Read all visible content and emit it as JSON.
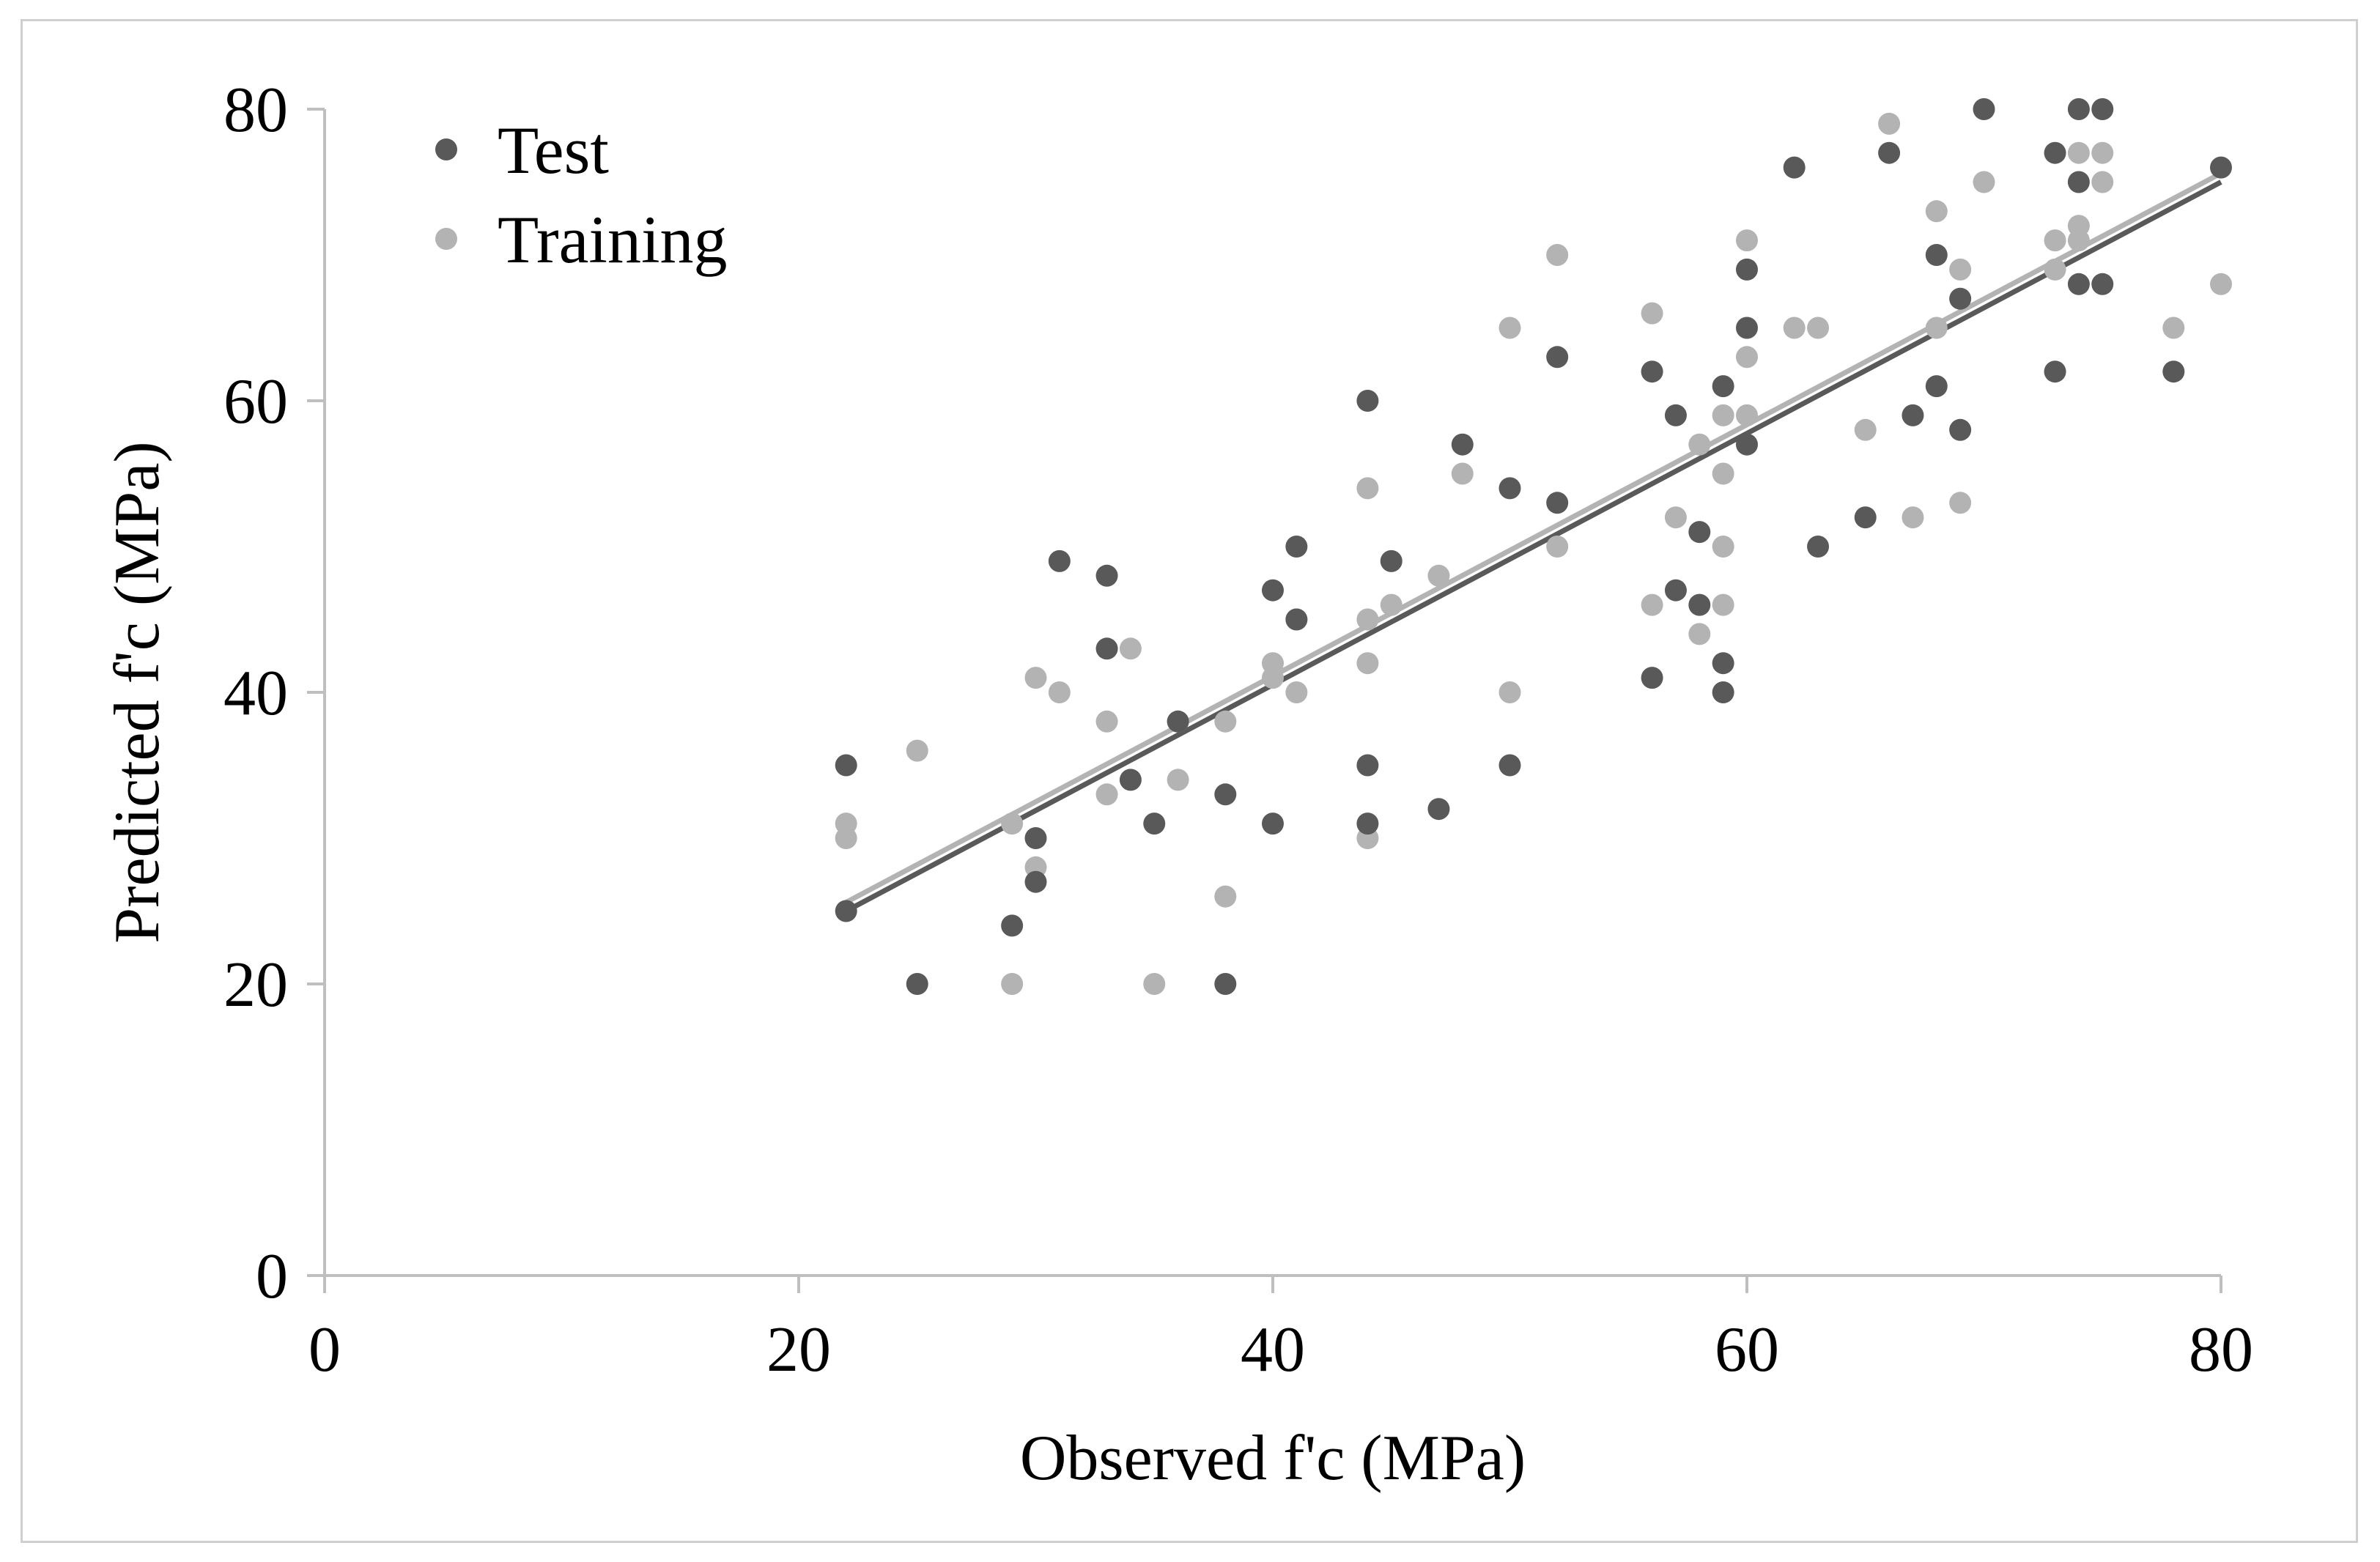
{
  "chart_data": {
    "type": "scatter",
    "title": "",
    "xlabel": "Observed f'c (MPa)",
    "ylabel": "Predicted f'c (MPa)",
    "xlim": [
      0,
      80
    ],
    "ylim": [
      0,
      80
    ],
    "xticks": [
      "0",
      "20",
      "40",
      "60",
      "80"
    ],
    "yticks": [
      "0",
      "20",
      "40",
      "60",
      "80"
    ],
    "grid": false,
    "legend_position": "top-left",
    "series": [
      {
        "name": "Test",
        "color": "#595959",
        "points": [
          [
            22,
            35
          ],
          [
            22,
            25
          ],
          [
            25,
            20
          ],
          [
            29,
            24
          ],
          [
            30,
            30
          ],
          [
            30,
            27
          ],
          [
            31,
            49
          ],
          [
            33,
            48
          ],
          [
            33,
            43
          ],
          [
            34,
            34
          ],
          [
            35,
            31
          ],
          [
            36,
            38
          ],
          [
            38,
            33
          ],
          [
            38,
            20
          ],
          [
            40,
            47
          ],
          [
            40,
            31
          ],
          [
            41,
            50
          ],
          [
            41,
            45
          ],
          [
            44,
            60
          ],
          [
            44,
            35
          ],
          [
            44,
            31
          ],
          [
            45,
            49
          ],
          [
            47,
            32
          ],
          [
            48,
            57
          ],
          [
            50,
            54
          ],
          [
            50,
            35
          ],
          [
            52,
            63
          ],
          [
            52,
            53
          ],
          [
            56,
            62
          ],
          [
            56,
            41
          ],
          [
            57,
            59
          ],
          [
            57,
            47
          ],
          [
            58,
            51
          ],
          [
            58,
            46
          ],
          [
            59,
            61
          ],
          [
            59,
            42
          ],
          [
            59,
            40
          ],
          [
            60,
            69
          ],
          [
            60,
            65
          ],
          [
            60,
            57
          ],
          [
            62,
            76
          ],
          [
            63,
            50
          ],
          [
            65,
            52
          ],
          [
            66,
            77
          ],
          [
            67,
            59
          ],
          [
            68,
            70
          ],
          [
            68,
            61
          ],
          [
            69,
            67
          ],
          [
            69,
            58
          ],
          [
            70,
            80
          ],
          [
            73,
            77
          ],
          [
            73,
            62
          ],
          [
            74,
            80
          ],
          [
            74,
            75
          ],
          [
            74,
            68
          ],
          [
            75,
            80
          ],
          [
            75,
            68
          ],
          [
            78,
            62
          ],
          [
            80,
            76
          ]
        ],
        "trendline": [
          [
            22,
            25
          ],
          [
            80,
            75
          ]
        ]
      },
      {
        "name": "Training",
        "color": "#b3b3b3",
        "points": [
          [
            22,
            31
          ],
          [
            22,
            30
          ],
          [
            25,
            36
          ],
          [
            29,
            31
          ],
          [
            29,
            20
          ],
          [
            30,
            41
          ],
          [
            30,
            28
          ],
          [
            31,
            40
          ],
          [
            33,
            38
          ],
          [
            33,
            33
          ],
          [
            34,
            43
          ],
          [
            35,
            20
          ],
          [
            36,
            38
          ],
          [
            36,
            34
          ],
          [
            38,
            38
          ],
          [
            38,
            26
          ],
          [
            40,
            42
          ],
          [
            40,
            41
          ],
          [
            41,
            45
          ],
          [
            41,
            40
          ],
          [
            44,
            54
          ],
          [
            44,
            45
          ],
          [
            44,
            42
          ],
          [
            44,
            30
          ],
          [
            45,
            46
          ],
          [
            47,
            48
          ],
          [
            48,
            55
          ],
          [
            50,
            65
          ],
          [
            50,
            40
          ],
          [
            52,
            70
          ],
          [
            52,
            50
          ],
          [
            56,
            66
          ],
          [
            56,
            46
          ],
          [
            57,
            52
          ],
          [
            58,
            57
          ],
          [
            58,
            44
          ],
          [
            59,
            59
          ],
          [
            59,
            55
          ],
          [
            59,
            50
          ],
          [
            59,
            46
          ],
          [
            60,
            71
          ],
          [
            60,
            63
          ],
          [
            60,
            59
          ],
          [
            62,
            65
          ],
          [
            63,
            65
          ],
          [
            65,
            58
          ],
          [
            66,
            79
          ],
          [
            67,
            52
          ],
          [
            68,
            73
          ],
          [
            68,
            65
          ],
          [
            69,
            69
          ],
          [
            69,
            53
          ],
          [
            70,
            75
          ],
          [
            73,
            71
          ],
          [
            73,
            69
          ],
          [
            74,
            77
          ],
          [
            74,
            72
          ],
          [
            74,
            71
          ],
          [
            75,
            77
          ],
          [
            75,
            75
          ],
          [
            78,
            65
          ],
          [
            80,
            68
          ]
        ],
        "trendline": [
          [
            22,
            25.6
          ],
          [
            80,
            75.6
          ]
        ]
      }
    ]
  }
}
